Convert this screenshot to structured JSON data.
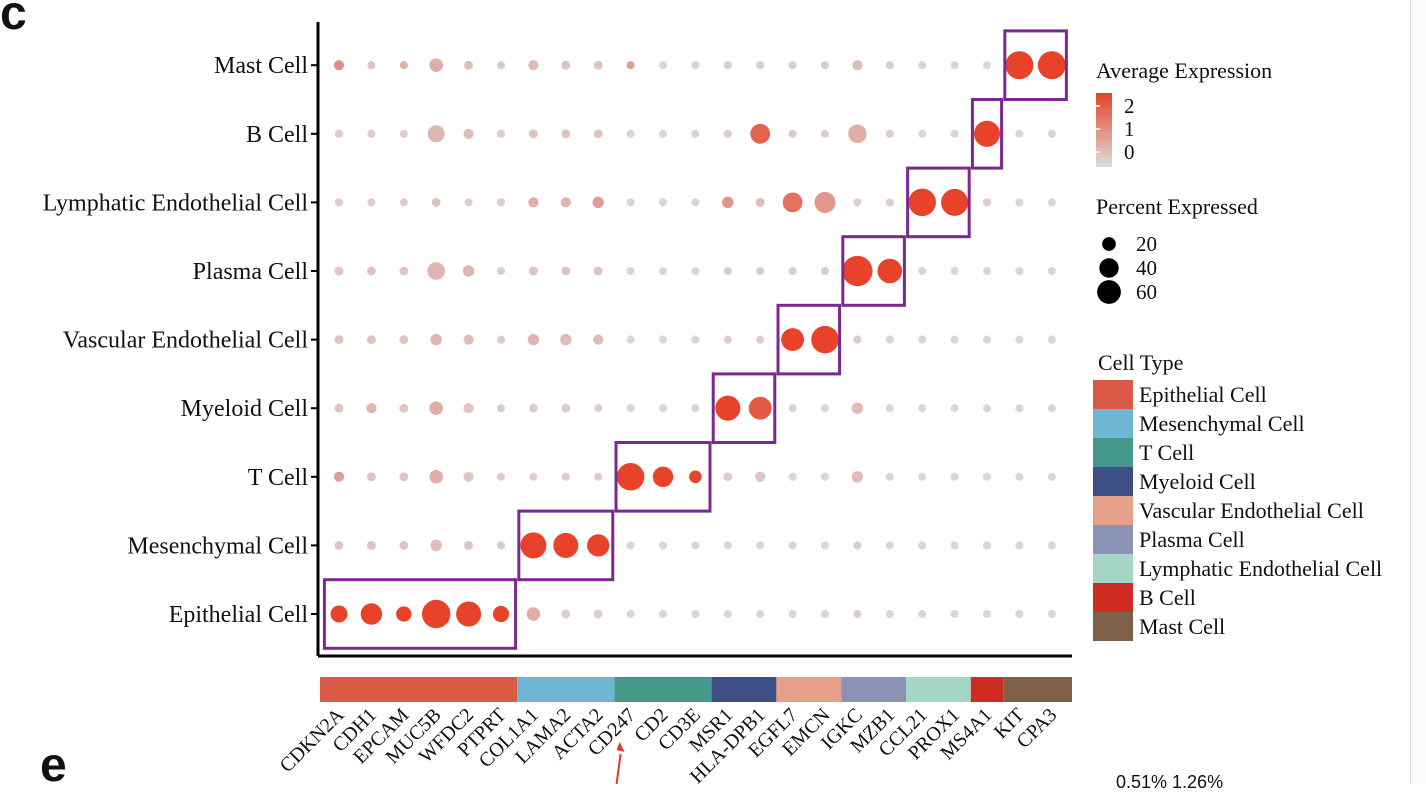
{
  "panel_labels": {
    "main": "c",
    "next": "e"
  },
  "bottom_note": "0.51% 1.26%",
  "chart_data": {
    "type": "dot",
    "title": "",
    "xlabel": "",
    "ylabel": "",
    "genes": [
      "CDKN2A",
      "CDH1",
      "EPCAM",
      "MUC5B",
      "WFDC2",
      "PTPRT",
      "COL1A1",
      "LAMA2",
      "ACTA2",
      "CD247",
      "CD2",
      "CD3E",
      "MSR1",
      "HLA-DPB1",
      "EGFL7",
      "EMCN",
      "IGKC",
      "MZB1",
      "CCL21",
      "PROX1",
      "MS4A1",
      "KIT",
      "CPA3"
    ],
    "cell_types": [
      "Epithelial Cell",
      "Mesenchymal Cell",
      "T Cell",
      "Myeloid Cell",
      "Vascular Endothelial Cell",
      "Plasma Cell",
      "Lymphatic Endothelial Cell",
      "B Cell",
      "Mast Cell"
    ],
    "rows_bottom_to_top": [
      "Epithelial Cell",
      "Mesenchymal Cell",
      "T Cell",
      "Myeloid Cell",
      "Vascular Endothelial Cell",
      "Plasma Cell",
      "Lymphatic Endothelial Cell",
      "B Cell",
      "Mast Cell"
    ],
    "gene_group_index": [
      0,
      0,
      0,
      0,
      0,
      0,
      1,
      1,
      1,
      2,
      2,
      2,
      3,
      3,
      4,
      4,
      5,
      5,
      6,
      6,
      7,
      8,
      8
    ],
    "percent": [
      [
        22,
        35,
        18,
        62,
        48,
        20,
        14,
        6,
        6,
        5,
        5,
        5,
        5,
        5,
        5,
        5,
        5,
        5,
        5,
        5,
        5,
        5,
        5
      ],
      [
        6,
        6,
        6,
        10,
        6,
        5,
        52,
        48,
        38,
        5,
        5,
        5,
        5,
        5,
        5,
        5,
        5,
        5,
        5,
        5,
        5,
        5,
        5
      ],
      [
        8,
        6,
        6,
        14,
        8,
        5,
        5,
        5,
        5,
        58,
        32,
        12,
        6,
        8,
        5,
        5,
        10,
        5,
        5,
        5,
        5,
        5,
        5
      ],
      [
        6,
        8,
        6,
        14,
        8,
        5,
        6,
        6,
        5,
        5,
        5,
        5,
        48,
        40,
        5,
        5,
        10,
        5,
        5,
        5,
        5,
        5,
        5
      ],
      [
        6,
        6,
        6,
        10,
        8,
        5,
        10,
        10,
        8,
        5,
        5,
        5,
        5,
        5,
        40,
        58,
        5,
        5,
        5,
        5,
        5,
        5,
        5
      ],
      [
        6,
        6,
        6,
        24,
        10,
        5,
        6,
        6,
        6,
        5,
        5,
        5,
        5,
        5,
        5,
        5,
        70,
        46,
        5,
        5,
        5,
        5,
        5
      ],
      [
        5,
        5,
        5,
        6,
        5,
        5,
        8,
        8,
        10,
        5,
        5,
        5,
        10,
        6,
        30,
        34,
        5,
        5,
        58,
        56,
        5,
        5,
        5
      ],
      [
        5,
        5,
        5,
        22,
        8,
        5,
        6,
        6,
        6,
        5,
        5,
        5,
        5,
        30,
        5,
        5,
        26,
        5,
        5,
        5,
        52,
        5,
        5
      ],
      [
        8,
        5,
        5,
        14,
        6,
        5,
        8,
        6,
        6,
        5,
        5,
        5,
        5,
        5,
        5,
        5,
        8,
        5,
        5,
        5,
        5,
        60,
        60
      ]
    ],
    "expression": [
      [
        2.0,
        2.0,
        2.0,
        2.0,
        2.0,
        2.0,
        0.6,
        0.2,
        0.2,
        0.1,
        0.1,
        0.1,
        0.1,
        0.1,
        0.1,
        0.1,
        0.2,
        0.1,
        0.1,
        0.1,
        0.1,
        0.1,
        0.1
      ],
      [
        0.3,
        0.3,
        0.3,
        0.4,
        0.3,
        0.2,
        2.0,
        2.0,
        2.0,
        0.1,
        0.1,
        0.1,
        0.1,
        0.1,
        0.1,
        0.1,
        0.2,
        0.1,
        0.1,
        0.1,
        0.1,
        0.1,
        0.1
      ],
      [
        0.8,
        0.3,
        0.3,
        0.6,
        0.3,
        0.2,
        0.2,
        0.2,
        0.2,
        2.0,
        2.0,
        2.0,
        0.2,
        0.3,
        0.1,
        0.1,
        0.4,
        0.1,
        0.1,
        0.1,
        0.1,
        0.1,
        0.1
      ],
      [
        0.3,
        0.5,
        0.3,
        0.6,
        0.3,
        0.2,
        0.2,
        0.2,
        0.2,
        0.1,
        0.1,
        0.1,
        2.0,
        1.7,
        0.1,
        0.1,
        0.4,
        0.1,
        0.1,
        0.1,
        0.1,
        0.1,
        0.1
      ],
      [
        0.3,
        0.3,
        0.3,
        0.5,
        0.4,
        0.2,
        0.5,
        0.4,
        0.4,
        0.1,
        0.1,
        0.1,
        0.2,
        0.2,
        2.0,
        2.0,
        0.2,
        0.1,
        0.1,
        0.1,
        0.1,
        0.1,
        0.1
      ],
      [
        0.3,
        0.3,
        0.3,
        0.5,
        0.5,
        0.2,
        0.3,
        0.3,
        0.3,
        0.1,
        0.1,
        0.1,
        0.2,
        0.2,
        0.2,
        0.2,
        2.0,
        2.0,
        0.1,
        0.1,
        0.1,
        0.1,
        0.1
      ],
      [
        0.2,
        0.2,
        0.2,
        0.3,
        0.2,
        0.2,
        0.6,
        0.5,
        0.8,
        0.1,
        0.1,
        0.1,
        0.9,
        0.4,
        1.4,
        0.9,
        0.2,
        0.2,
        2.0,
        2.0,
        0.2,
        0.1,
        0.1
      ],
      [
        0.2,
        0.2,
        0.2,
        0.5,
        0.4,
        0.2,
        0.3,
        0.3,
        0.3,
        0.1,
        0.1,
        0.1,
        0.2,
        1.6,
        0.2,
        0.2,
        0.6,
        0.2,
        0.1,
        0.1,
        2.0,
        0.1,
        0.1
      ],
      [
        1.0,
        0.3,
        0.6,
        0.6,
        0.4,
        0.2,
        0.4,
        0.3,
        0.3,
        0.8,
        0.1,
        0.1,
        0.2,
        0.2,
        0.2,
        0.2,
        0.4,
        0.2,
        0.1,
        0.1,
        0.1,
        2.0,
        2.0
      ]
    ],
    "marker_boxes": [
      {
        "cell_type": "Epithelial Cell",
        "genes": [
          "CDKN2A",
          "PTPRT"
        ]
      },
      {
        "cell_type": "Mesenchymal Cell",
        "genes": [
          "COL1A1",
          "ACTA2"
        ]
      },
      {
        "cell_type": "T Cell",
        "genes": [
          "CD247",
          "CD3E"
        ]
      },
      {
        "cell_type": "Myeloid Cell",
        "genes": [
          "MSR1",
          "HLA-DPB1"
        ]
      },
      {
        "cell_type": "Vascular Endothelial Cell",
        "genes": [
          "EGFL7",
          "EMCN"
        ]
      },
      {
        "cell_type": "Plasma Cell",
        "genes": [
          "IGKC",
          "MZB1"
        ]
      },
      {
        "cell_type": "Lymphatic Endothelial Cell",
        "genes": [
          "CCL21",
          "PROX1"
        ]
      },
      {
        "cell_type": "B Cell",
        "genes": [
          "MS4A1",
          "MS4A1"
        ]
      },
      {
        "cell_type": "Mast Cell",
        "genes": [
          "KIT",
          "CPA3"
        ]
      }
    ],
    "legend_expression": {
      "title": "Average Expression",
      "ticks": [
        "2",
        "1",
        "0"
      ],
      "range": [
        0,
        2.3
      ],
      "low_color": "#dcdcdc",
      "high_color": "#e8422a"
    },
    "legend_percent": {
      "title": "Percent Expressed",
      "values": [
        20,
        40,
        60
      ],
      "labels": [
        "20",
        "40",
        "60"
      ]
    },
    "legend_celltype": {
      "title": "Cell Type",
      "items": [
        {
          "label": "Epithelial Cell",
          "color": "#d95a46"
        },
        {
          "label": "Mesenchymal Cell",
          "color": "#6fb6d3"
        },
        {
          "label": "T Cell",
          "color": "#44998a"
        },
        {
          "label": "Myeloid Cell",
          "color": "#3d4f85"
        },
        {
          "label": "Vascular Endothelial Cell",
          "color": "#e6a089"
        },
        {
          "label": "Plasma Cell",
          "color": "#8a93b5"
        },
        {
          "label": "Lymphatic Endothelial Cell",
          "color": "#a4d6c6"
        },
        {
          "label": "B Cell",
          "color": "#ce2b22"
        },
        {
          "label": "Mast Cell",
          "color": "#7d6047"
        }
      ]
    },
    "box_color": "#7a2a8f",
    "annotation_arrow_color": "#e03a2a",
    "grid": false,
    "legend_position": "right"
  }
}
